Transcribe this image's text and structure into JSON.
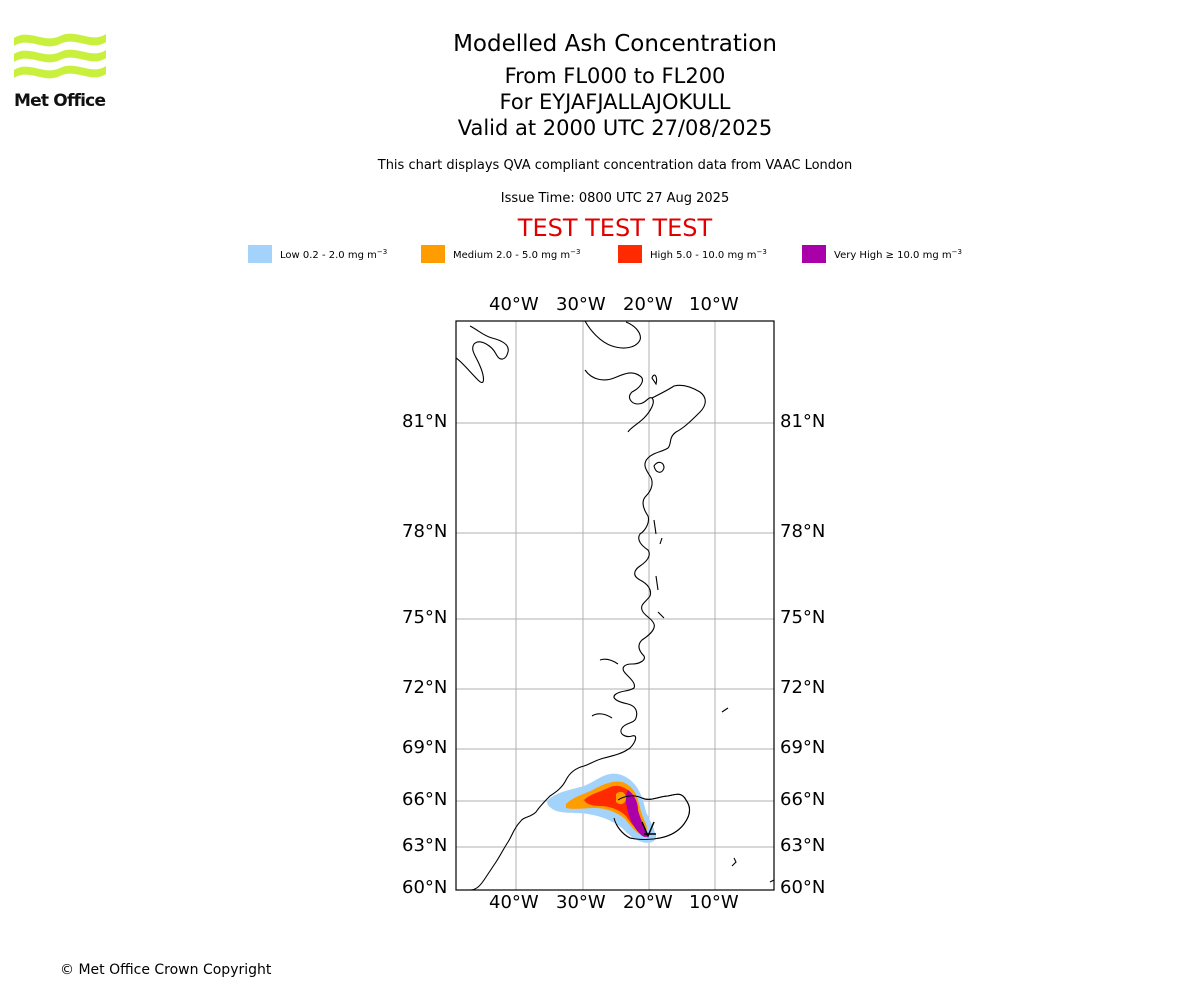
{
  "logo": {
    "text": "Met Office",
    "color": "#c8f03c"
  },
  "header": {
    "title": "Modelled Ash Concentration",
    "levels": "From FL000 to FL200",
    "volcano": "For EYJAFJALLAJOKULL",
    "valid": "Valid at 2000 UTC 27/08/2025",
    "note": "This chart displays QVA compliant concentration data from VAAC London",
    "issue_time": "Issue Time: 0800 UTC 27 Aug 2025",
    "test_banner": "TEST TEST TEST"
  },
  "legend": [
    {
      "label": "Low 0.2 - 2.0 mg m",
      "exp": "−3",
      "color": "#a3d3fb"
    },
    {
      "label": "Medium 2.0 - 5.0 mg m",
      "exp": "−3",
      "color": "#ff9d00"
    },
    {
      "label": "High 5.0 - 10.0 mg m",
      "exp": "−3",
      "color": "#ff2a00"
    },
    {
      "label": "Very High  ≥  10.0 mg m",
      "exp": "−3",
      "color": "#aa00aa"
    }
  ],
  "map": {
    "lon_ticks": [
      "40°W",
      "30°W",
      "20°W",
      "10°W"
    ],
    "lat_ticks": [
      "81°N",
      "78°N",
      "75°N",
      "72°N",
      "69°N",
      "66°N",
      "63°N",
      "60°N"
    ],
    "lon_range": [
      -49,
      -1
    ],
    "lat_range": [
      60,
      84
    ],
    "gridlines": true,
    "coastline_color": "#000000"
  },
  "footer": {
    "copyright": "© Met Office Crown Copyright"
  }
}
